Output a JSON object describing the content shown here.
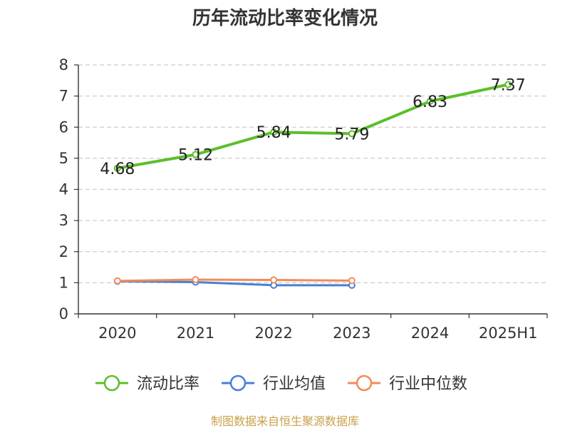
{
  "chart_data": {
    "type": "line",
    "title": "历年流动比率变化情况",
    "categories": [
      "2020",
      "2021",
      "2022",
      "2023",
      "2024",
      "2025H1"
    ],
    "ylim": [
      0,
      8
    ],
    "yticks": [
      0,
      1,
      2,
      3,
      4,
      5,
      6,
      7,
      8
    ],
    "grid": true,
    "legend_position": "bottom",
    "series": [
      {
        "name": "流动比率",
        "color": "#5cbf2a",
        "values": [
          4.68,
          5.12,
          5.84,
          5.79,
          6.83,
          7.37
        ],
        "labels": [
          "4.68",
          "5.12",
          "5.84",
          "5.79",
          "6.83",
          "7.37"
        ]
      },
      {
        "name": "行业均值",
        "color": "#4a7fd6",
        "values": [
          1.05,
          1.02,
          0.92,
          0.92,
          null,
          null
        ]
      },
      {
        "name": "行业中位数",
        "color": "#f08c5a",
        "values": [
          1.06,
          1.1,
          1.09,
          1.07,
          null,
          null
        ]
      }
    ]
  },
  "footer": "制图数据来自恒生聚源数据库"
}
